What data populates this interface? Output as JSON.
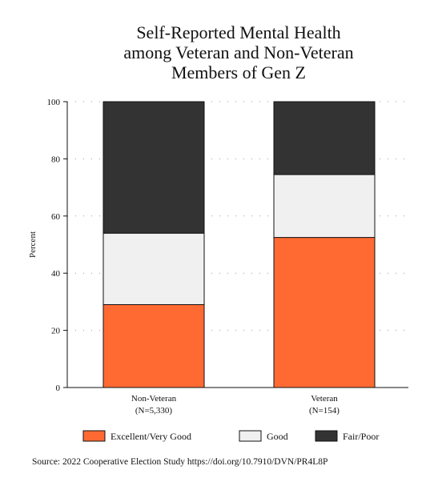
{
  "chart_data": {
    "type": "bar",
    "stacked": true,
    "title": [
      "Self-Reported Mental Health",
      "among Veteran and Non-Veteran",
      "Members of Gen Z"
    ],
    "xlabel": "",
    "ylabel": "Percent",
    "ylim": [
      0,
      100
    ],
    "yticks": [
      0,
      20,
      40,
      60,
      80,
      100
    ],
    "grid": true,
    "legend_position": "bottom",
    "categories": [
      {
        "name": "Non-Veteran",
        "n_label": "(N=5,330)"
      },
      {
        "name": "Veteran",
        "n_label": "(N=154)"
      }
    ],
    "series": [
      {
        "name": "Excellent/Very Good",
        "color": "#ff6a33",
        "values": [
          29,
          52.5
        ]
      },
      {
        "name": "Good",
        "color": "#f0f0f0",
        "values": [
          25,
          22
        ]
      },
      {
        "name": "Fair/Poor",
        "color": "#333333",
        "values": [
          46,
          25.5
        ]
      }
    ],
    "source": "Source: 2022 Cooperative Election Study https://doi.org/10.7910/DVN/PR4L8P"
  }
}
